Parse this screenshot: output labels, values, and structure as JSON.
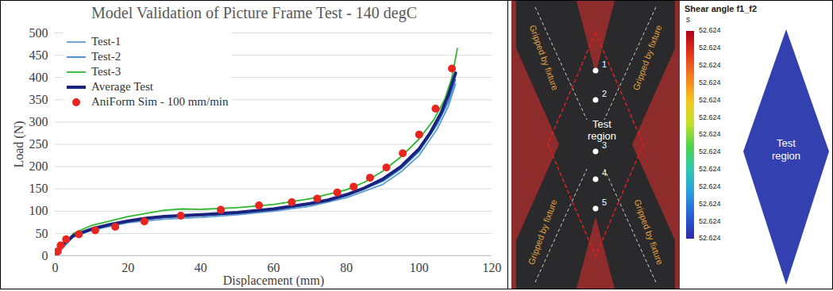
{
  "chart_data": {
    "type": "line",
    "title": "Model Validation of Picture Frame Test - 140 degC",
    "x_label": "Displacement (mm)",
    "y_label": "Load (N)",
    "xlim": [
      0,
      120
    ],
    "xticks": [
      0,
      20,
      40,
      60,
      80,
      100,
      120
    ],
    "ylim": [
      0,
      500
    ],
    "yticks": [
      0,
      50,
      100,
      150,
      200,
      250,
      300,
      350,
      400,
      450,
      500
    ],
    "grid": true,
    "legend": "upper left",
    "series": [
      {
        "name": "Test-1",
        "type": "line",
        "line_style": "solid",
        "color": "#5b9bd5",
        "x": [
          0,
          5,
          10,
          20,
          30,
          40,
          50,
          60,
          70,
          80,
          90,
          95,
          100,
          105,
          108,
          110
        ],
        "values": [
          0,
          42,
          57,
          74,
          82,
          86,
          92,
          100,
          111,
          130,
          160,
          188,
          225,
          285,
          335,
          385
        ]
      },
      {
        "name": "Test-2",
        "type": "line",
        "line_style": "solid",
        "color": "#3a86d4",
        "x": [
          0,
          5,
          10,
          20,
          30,
          40,
          50,
          60,
          70,
          80,
          90,
          95,
          100,
          105,
          108,
          110
        ],
        "values": [
          0,
          44,
          59,
          77,
          86,
          90,
          95,
          103,
          115,
          134,
          167,
          195,
          234,
          295,
          345,
          395
        ]
      },
      {
        "name": "Test-3",
        "type": "line",
        "line_style": "solid",
        "color": "#2db82d",
        "x": [
          0,
          5,
          10,
          20,
          30,
          35,
          40,
          50,
          60,
          70,
          80,
          85,
          90,
          95,
          100,
          104,
          107,
          109,
          110.5
        ],
        "values": [
          0,
          50,
          68,
          88,
          102,
          105,
          104,
          108,
          115,
          128,
          148,
          165,
          190,
          222,
          262,
          305,
          350,
          400,
          465
        ]
      },
      {
        "name": "Average Test",
        "type": "line",
        "line_style": "solid",
        "color": "#1a237e",
        "x": [
          0,
          2,
          5,
          10,
          15,
          20,
          25,
          30,
          40,
          50,
          60,
          70,
          75,
          80,
          85,
          90,
          95,
          100,
          103,
          106,
          108,
          110
        ],
        "values": [
          0,
          25,
          45,
          60,
          70,
          78,
          84,
          88,
          92,
          97,
          105,
          117,
          125,
          137,
          152,
          172,
          200,
          240,
          275,
          320,
          360,
          410
        ]
      },
      {
        "name": "AniForm Sim - 100 mm/min",
        "type": "scatter",
        "marker": "circle",
        "color": "#e8251f",
        "x": [
          0,
          0.7,
          1.5,
          3,
          6.5,
          11,
          16.5,
          24.5,
          34.5,
          45.5,
          56,
          65,
          72,
          77.5,
          82,
          86.5,
          91,
          95.5,
          100,
          104.5,
          109
        ],
        "values": [
          0,
          10,
          23,
          37,
          48,
          57,
          65,
          77,
          90,
          103,
          113,
          120,
          128,
          142,
          155,
          175,
          198,
          230,
          272,
          330,
          420
        ]
      }
    ]
  },
  "photo": {
    "gripped_labels": [
      "Gripped by fixture",
      "Gripped by fixture",
      "Gripped by fixture",
      "Gripped by fixture"
    ],
    "points": [
      "1",
      "2",
      "3",
      "4",
      "5"
    ],
    "region_label": "Test region"
  },
  "simulation": {
    "title": "Shear angle f1_f2",
    "subtitle": "s",
    "colorbar_ticks": [
      52.624,
      52.624,
      52.624,
      52.624,
      52.624,
      52.624,
      52.624,
      52.624,
      52.624,
      52.624,
      52.624,
      52.624,
      52.624
    ],
    "region_label": "Test region"
  }
}
